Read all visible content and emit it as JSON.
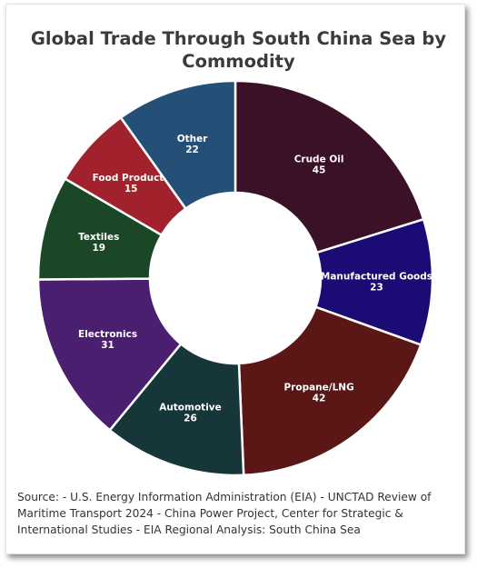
{
  "chart_data": {
    "type": "pie",
    "title": "Global Trade Through South China Sea by Commodity",
    "categories": [
      "Crude Oil",
      "Manufactured Goods",
      "Propane/LNG",
      "Automotive",
      "Electronics",
      "Textiles",
      "Food Products",
      "Other"
    ],
    "values": [
      45,
      23,
      42,
      26,
      31,
      19,
      15,
      22
    ],
    "colors": [
      "#3b1128",
      "#1b0b74",
      "#5a1716",
      "#17363a",
      "#4b1f6f",
      "#1b4726",
      "#a1212c",
      "#245077"
    ],
    "donut": true,
    "legend": "none"
  },
  "source": "Source: - U.S. Energy Information Administration (EIA) - UNCTAD Review of Maritime Transport 2024 - China Power Project, Center for Strategic & International Studies - EIA Regional Analysis: South China Sea"
}
